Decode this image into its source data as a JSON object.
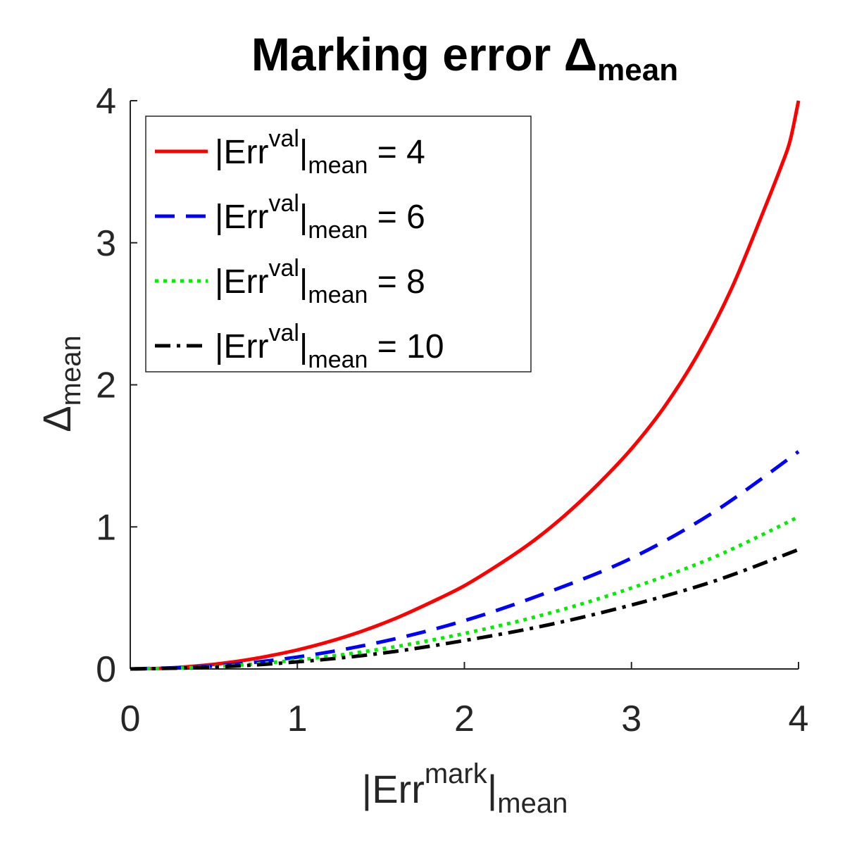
{
  "chart_data": {
    "type": "line",
    "title": {
      "main": "Marking  error  Δ",
      "sub": "mean"
    },
    "xlabel": {
      "prefix": "|Err",
      "sup": "mark",
      "bar": "|",
      "sub": "mean"
    },
    "ylabel": {
      "main": "Δ",
      "sub": "mean"
    },
    "xlim": [
      0,
      4
    ],
    "ylim": [
      0,
      4
    ],
    "xticks": [
      "0",
      "1",
      "2",
      "3",
      "4"
    ],
    "yticks": [
      "0",
      "1",
      "2",
      "3",
      "4"
    ],
    "grid": false,
    "legend_position": "top-left",
    "series": [
      {
        "legend": {
          "prefix": "|Err",
          "sup": "val",
          "bar": "|",
          "sub": "mean",
          "eq": " =  4"
        },
        "color": "#ff0000",
        "style": "solid",
        "x": [
          0,
          0.2,
          0.4,
          0.6,
          0.8,
          1.0,
          1.2,
          1.4,
          1.6,
          1.8,
          2.0,
          2.2,
          2.4,
          2.6,
          2.8,
          3.0,
          3.2,
          3.4,
          3.6,
          3.8,
          3.9,
          3.95,
          4.0
        ],
        "y": [
          0,
          0.005,
          0.021,
          0.047,
          0.085,
          0.134,
          0.196,
          0.271,
          0.362,
          0.469,
          0.586,
          0.73,
          0.89,
          1.08,
          1.3,
          1.55,
          1.85,
          2.22,
          2.68,
          3.25,
          3.55,
          3.72,
          4.0
        ]
      },
      {
        "legend": {
          "prefix": "|Err",
          "sup": "val",
          "bar": "|",
          "sub": "mean",
          "eq": " =  6"
        },
        "color": "#0000ff",
        "style": "dashed",
        "x": [
          0,
          0.5,
          1.0,
          1.5,
          2.0,
          2.5,
          3.0,
          3.5,
          4.0
        ],
        "y": [
          0,
          0.021,
          0.084,
          0.19,
          0.34,
          0.54,
          0.78,
          1.11,
          1.53
        ]
      },
      {
        "legend": {
          "prefix": "|Err",
          "sup": "val",
          "bar": "|",
          "sub": "mean",
          "eq": " =  8"
        },
        "color": "#00ee00",
        "style": "dotted",
        "x": [
          0,
          0.5,
          1.0,
          1.5,
          2.0,
          2.5,
          3.0,
          3.5,
          4.0
        ],
        "y": [
          0,
          0.016,
          0.063,
          0.14,
          0.25,
          0.39,
          0.57,
          0.79,
          1.07
        ]
      },
      {
        "legend": {
          "prefix": "|Err",
          "sup": "val",
          "bar": "|",
          "sub": "mean",
          "eq": " =  10"
        },
        "color": "#000000",
        "style": "dashdot",
        "x": [
          0,
          0.5,
          1.0,
          1.5,
          2.0,
          2.5,
          3.0,
          3.5,
          4.0
        ],
        "y": [
          0,
          0.013,
          0.05,
          0.11,
          0.2,
          0.31,
          0.45,
          0.62,
          0.84
        ]
      }
    ]
  }
}
